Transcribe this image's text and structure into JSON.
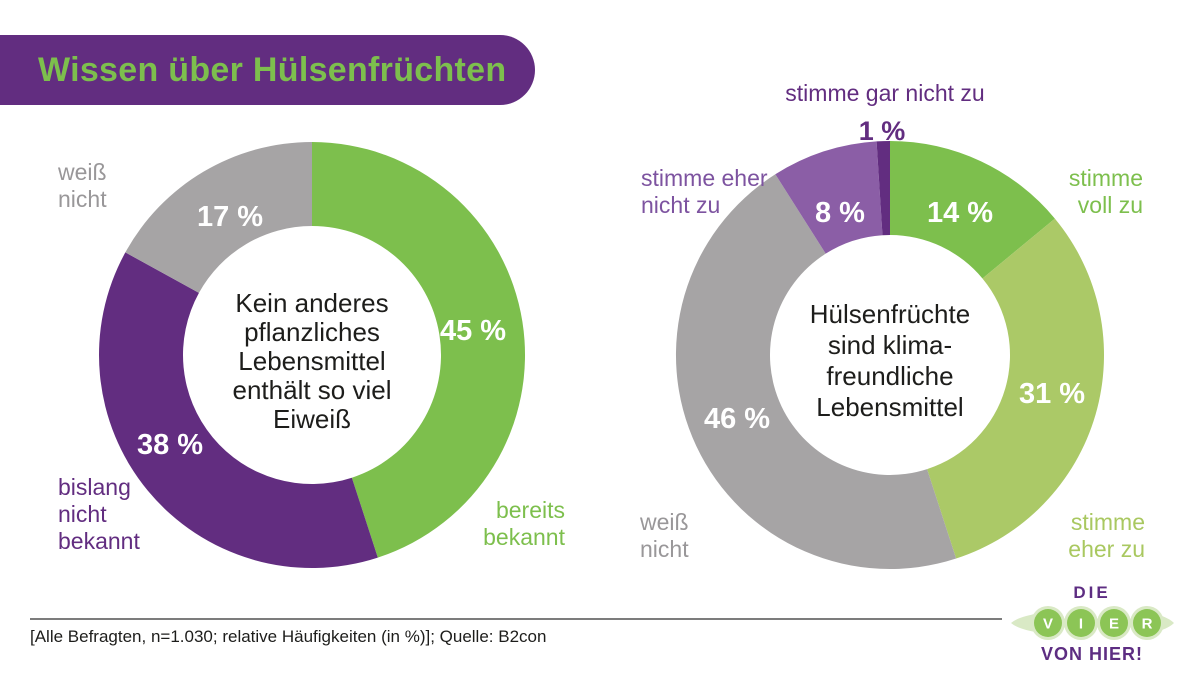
{
  "title": {
    "text": "Wissen über Hülsenfrüchten"
  },
  "colors": {
    "brand_purple": "#622d80",
    "brand_green": "#7dbf4d",
    "light_green": "#abc967",
    "mid_purple": "#8b5ea6",
    "gray": "#a6a4a5",
    "text_dark": "#1d1d1b"
  },
  "chart_data": [
    {
      "type": "donut",
      "id": "protein-knowledge",
      "center_text": "Kein anderes\npflanzliches\nLebensmittel\nenthält so viel\nEiweiß",
      "units": "%",
      "total": 100,
      "start_angle_deg": 0,
      "clockwise": true,
      "segments": [
        {
          "label": "bereits bekannt",
          "callout": "bereits\nbekannt",
          "value": 45,
          "display": "45 %",
          "color": "#7dbf4d"
        },
        {
          "label": "bislang nicht bekannt",
          "callout": "bislang\nnicht\nbekannt",
          "value": 38,
          "display": "38 %",
          "color": "#622d80"
        },
        {
          "label": "weiß nicht",
          "callout": "weiß\nnicht",
          "value": 17,
          "display": "17 %",
          "color": "#a6a4a5"
        }
      ]
    },
    {
      "type": "donut",
      "id": "climate-friendly",
      "center_text": "Hülsenfrüchte\nsind klima-\nfreundliche\nLebensmittel",
      "units": "%",
      "total": 100,
      "start_angle_deg": 0,
      "clockwise": true,
      "segments": [
        {
          "label": "stimme voll zu",
          "callout": "stimme\nvoll zu",
          "value": 14,
          "display": "14 %",
          "color": "#7dbf4d"
        },
        {
          "label": "stimme eher zu",
          "callout": "stimme\neher zu",
          "value": 31,
          "display": "31 %",
          "color": "#abc967"
        },
        {
          "label": "weiß nicht",
          "callout": "weiß\nnicht",
          "value": 46,
          "display": "46 %",
          "color": "#a6a4a5"
        },
        {
          "label": "stimme eher nicht zu",
          "callout": "stimme eher\nnicht zu",
          "value": 8,
          "display": "8 %",
          "color": "#8b5ea6"
        },
        {
          "label": "stimme gar nicht zu",
          "callout": "stimme gar nicht zu",
          "value": 1,
          "display": "1 %",
          "color": "#622d80"
        }
      ]
    }
  ],
  "footer": {
    "note": "[Alle Befragten, n=1.030; relative Häufigkeiten (in %)]; Quelle: B2con"
  },
  "logo": {
    "top": "DIE",
    "letters": [
      "V",
      "I",
      "E",
      "R"
    ],
    "bottom": "VON HIER!"
  }
}
